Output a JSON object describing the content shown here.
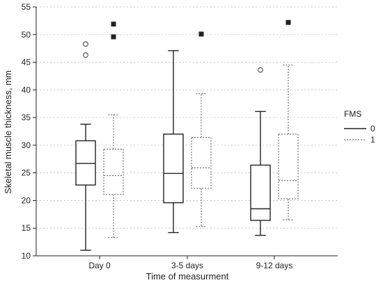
{
  "chart_data": {
    "type": "box",
    "title": "",
    "xlabel": "Time of measurment",
    "ylabel": "Skeletal muscle thickness, mm",
    "ylim": [
      10,
      55
    ],
    "yticks": [
      10,
      15,
      20,
      25,
      30,
      35,
      40,
      45,
      50,
      55
    ],
    "grid": "horizontal dotted",
    "categories": [
      "Day 0",
      "3-5 days",
      "9-12 days"
    ],
    "legend": {
      "title": "FMS",
      "placement": "right"
    },
    "series": [
      {
        "name": "0",
        "line_style": "solid",
        "boxes": [
          {
            "category": "Day 0",
            "min": 11.0,
            "q1": 22.8,
            "median": 26.7,
            "q3": 30.8,
            "max": 33.8,
            "outliers": [
              46.3,
              48.3
            ],
            "extremes": []
          },
          {
            "category": "3-5 days",
            "min": 14.2,
            "q1": 19.6,
            "median": 24.9,
            "q3": 32.0,
            "max": 47.1,
            "outliers": [],
            "extremes": []
          },
          {
            "category": "9-12 days",
            "min": 13.7,
            "q1": 16.4,
            "median": 18.5,
            "q3": 26.4,
            "max": 36.1,
            "outliers": [
              43.6
            ],
            "extremes": []
          }
        ]
      },
      {
        "name": "1",
        "line_style": "dotted",
        "boxes": [
          {
            "category": "Day 0",
            "min": 13.3,
            "q1": 21.1,
            "median": 24.5,
            "q3": 29.3,
            "max": 35.5,
            "outliers": [],
            "extremes": [
              49.6,
              51.9
            ]
          },
          {
            "category": "3-5 days",
            "min": 15.3,
            "q1": 22.2,
            "median": 25.9,
            "q3": 31.4,
            "max": 39.3,
            "outliers": [],
            "extremes": [
              50.1
            ]
          },
          {
            "category": "9-12 days",
            "min": 16.5,
            "q1": 20.3,
            "median": 23.6,
            "q3": 32.0,
            "max": 44.5,
            "outliers": [],
            "extremes": [
              52.2
            ]
          }
        ]
      }
    ]
  }
}
